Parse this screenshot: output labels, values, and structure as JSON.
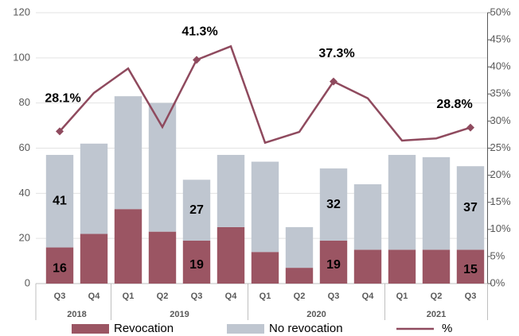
{
  "chart_data": {
    "type": "bar",
    "categories": [
      "Q3",
      "Q4",
      "Q1",
      "Q2",
      "Q3",
      "Q4",
      "Q1",
      "Q2",
      "Q3",
      "Q4",
      "Q1",
      "Q2",
      "Q3"
    ],
    "x_groups": [
      "2018",
      "2018",
      "2019",
      "2019",
      "2019",
      "2019",
      "2020",
      "2020",
      "2020",
      "2020",
      "2021",
      "2021",
      "2021"
    ],
    "stacked": true,
    "series": [
      {
        "name": "Revocation",
        "color": "#9b5563",
        "values": [
          16,
          22,
          33,
          23,
          19,
          25,
          14,
          7,
          19,
          15,
          15,
          15,
          15
        ],
        "value_labels": [
          "16",
          null,
          null,
          null,
          "19",
          null,
          null,
          null,
          "19",
          null,
          null,
          null,
          "15"
        ]
      },
      {
        "name": "No revocation",
        "color": "#bfc6d0",
        "values": [
          41,
          40,
          50,
          57,
          27,
          32,
          40,
          18,
          32,
          29,
          42,
          41,
          37
        ],
        "value_labels": [
          "41",
          null,
          null,
          null,
          "27",
          null,
          null,
          null,
          "32",
          null,
          null,
          null,
          "37"
        ]
      },
      {
        "name": "%",
        "type": "line",
        "axis": "y2",
        "color": "#8f4a5e",
        "values": [
          28.1,
          35.2,
          39.7,
          28.9,
          41.3,
          43.8,
          26,
          28,
          37.3,
          34.2,
          26.4,
          26.8,
          28.8
        ],
        "value_labels": [
          "28.1%",
          null,
          null,
          null,
          "41.3%",
          null,
          null,
          null,
          "37.3%",
          null,
          null,
          null,
          "28.8%"
        ]
      }
    ],
    "ylim": [
      0,
      120
    ],
    "yticks": [
      0,
      20,
      40,
      60,
      80,
      100,
      120
    ],
    "y2lim": [
      0,
      50
    ],
    "y2ticks": [
      {
        "value": 0,
        "label": "0%"
      },
      {
        "value": 5,
        "label": "5%"
      },
      {
        "value": 10,
        "label": "10%"
      },
      {
        "value": 15,
        "label": "15%"
      },
      {
        "value": 20,
        "label": "20%"
      },
      {
        "value": 25,
        "label": "25%"
      },
      {
        "value": 30,
        "label": "30%"
      },
      {
        "value": 35,
        "label": "35%"
      },
      {
        "value": 40,
        "label": "40%"
      },
      {
        "value": 45,
        "label": "45%"
      },
      {
        "value": 50,
        "label": "50%"
      }
    ],
    "grid": true
  }
}
